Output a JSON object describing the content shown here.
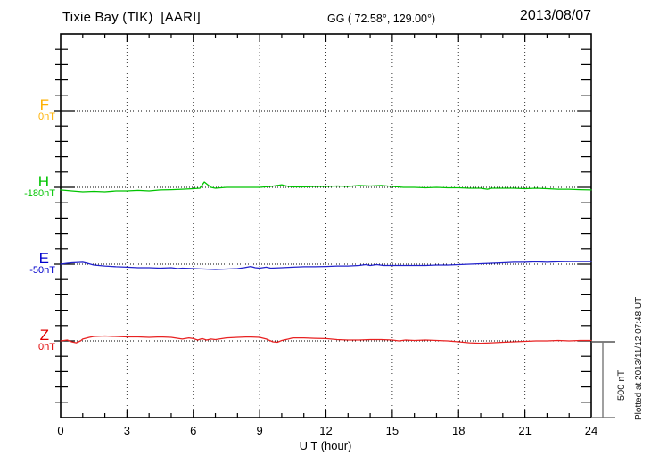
{
  "header": {
    "title": "Tixie Bay (TIK)  [AARI]",
    "coordinates": "GG ( 72.58°, 129.00°)",
    "date": "2013/08/07"
  },
  "axis": {
    "xlabel": "U T (hour)"
  },
  "scale_bar": {
    "label": "500 nT"
  },
  "watermark": {
    "plotted_at": "Plotted at 2013/11/12 07:48 UT"
  },
  "channels": [
    {
      "name": "F",
      "unit_label": "0nT",
      "color": "#ffb000"
    },
    {
      "name": "H",
      "unit_label": "-180nT",
      "color": "#00c400"
    },
    {
      "name": "E",
      "unit_label": "-50nT",
      "color": "#0000cc"
    },
    {
      "name": "Z",
      "unit_label": "0nT",
      "color": "#e00000"
    }
  ],
  "chart_data": {
    "type": "line",
    "title": "Tixie Bay (TIK)  [AARI]",
    "xlabel": "U T (hour)",
    "x_range": [
      0,
      24
    ],
    "x_ticks": [
      0,
      3,
      6,
      9,
      12,
      15,
      18,
      21,
      24
    ],
    "x_minor_tick_step_hours": 1,
    "grid": "dotted vertical lines every 3 h; dotted horizontal baseline per channel",
    "legend_position": "left margin (channel letters F, H, E, Z with baseline values)",
    "scale_division_nt": 500,
    "series": [
      {
        "name": "F",
        "baseline_label": "0nT",
        "color": "#ffb000",
        "note": "no data plotted (baseline only)",
        "x": [],
        "y_offset_nt": []
      },
      {
        "name": "H",
        "baseline_label": "-180nT",
        "color": "#00c400",
        "x": [
          0,
          0.5,
          1,
          1.5,
          2,
          2.5,
          3,
          3.5,
          4,
          4.5,
          5,
          5.5,
          6,
          6.3,
          6.5,
          6.8,
          7,
          7.5,
          8,
          8.5,
          9,
          9.5,
          10,
          10.3,
          10.5,
          11,
          11.5,
          12,
          12.5,
          13,
          13.5,
          14,
          14.5,
          15,
          15.5,
          16,
          16.5,
          17,
          17.5,
          18,
          18.5,
          19,
          19.3,
          19.5,
          20,
          20.5,
          21,
          21.5,
          22,
          22.5,
          23,
          23.5,
          24
        ],
        "y_offset_nt": [
          -17,
          -23,
          -29,
          -26,
          -29,
          -23,
          -23,
          -20,
          -23,
          -17,
          -15,
          -12,
          -9,
          -6,
          35,
          0,
          -6,
          0,
          0,
          0,
          0,
          6,
          17,
          6,
          3,
          3,
          6,
          6,
          9,
          6,
          12,
          9,
          12,
          6,
          0,
          0,
          -3,
          0,
          -3,
          -3,
          -6,
          -6,
          -12,
          -6,
          -6,
          -6,
          -9,
          -6,
          -9,
          -12,
          -12,
          -15,
          -17
        ]
      },
      {
        "name": "E",
        "baseline_label": "-50nT",
        "color": "#2222cc",
        "x": [
          0,
          0.3,
          0.5,
          1,
          1.2,
          1.5,
          2,
          2.5,
          3,
          3.5,
          4,
          4.5,
          5,
          5.3,
          5.5,
          6,
          6.5,
          7,
          7.5,
          8,
          8.3,
          8.6,
          8.8,
          9,
          9.3,
          9.5,
          10,
          10.5,
          11,
          11.5,
          12,
          12.5,
          13,
          13.5,
          13.8,
          14,
          14.3,
          14.6,
          15,
          15.5,
          16,
          16.5,
          17,
          17.5,
          18,
          18.5,
          19,
          19.5,
          20,
          20.5,
          21,
          21.5,
          22,
          22.5,
          23,
          23.5,
          24
        ],
        "y_offset_nt": [
          0,
          6,
          9,
          12,
          6,
          -6,
          -12,
          -17,
          -20,
          -23,
          -23,
          -26,
          -23,
          -29,
          -26,
          -29,
          -32,
          -35,
          -32,
          -29,
          -23,
          -15,
          -23,
          -26,
          -20,
          -26,
          -23,
          -20,
          -17,
          -17,
          -15,
          -12,
          -12,
          -9,
          -3,
          -9,
          -3,
          -9,
          -9,
          -9,
          -9,
          -9,
          -6,
          -6,
          -3,
          0,
          3,
          6,
          9,
          12,
          12,
          15,
          12,
          15,
          17,
          17,
          17
        ]
      },
      {
        "name": "Z",
        "baseline_label": "0nT",
        "color": "#e82222",
        "x": [
          0,
          0.3,
          0.5,
          0.7,
          0.9,
          1,
          1.3,
          1.5,
          2,
          2.5,
          3,
          3.5,
          4,
          4.5,
          5,
          5.3,
          5.5,
          5.8,
          6,
          6.2,
          6.4,
          6.6,
          6.8,
          7,
          7.3,
          7.5,
          8,
          8.5,
          9,
          9.3,
          9.6,
          9.8,
          10,
          10.3,
          10.5,
          11,
          11.5,
          12,
          12.5,
          13,
          13.5,
          14,
          14.5,
          15,
          15.3,
          15.6,
          16,
          16.5,
          17,
          17.5,
          18,
          18.5,
          19,
          19.5,
          20,
          20.5,
          21,
          21.5,
          22,
          22.5,
          23,
          23.5,
          24
        ],
        "y_offset_nt": [
          0,
          6,
          -6,
          -12,
          0,
          12,
          23,
          29,
          32,
          29,
          26,
          26,
          23,
          26,
          23,
          17,
          12,
          20,
          15,
          6,
          15,
          6,
          12,
          9,
          15,
          20,
          23,
          26,
          23,
          12,
          -6,
          -9,
          3,
          12,
          20,
          20,
          17,
          15,
          9,
          6,
          6,
          9,
          9,
          6,
          0,
          6,
          3,
          6,
          3,
          0,
          -6,
          -12,
          -15,
          -12,
          -9,
          -6,
          -3,
          0,
          0,
          3,
          0,
          3,
          3
        ]
      }
    ]
  }
}
